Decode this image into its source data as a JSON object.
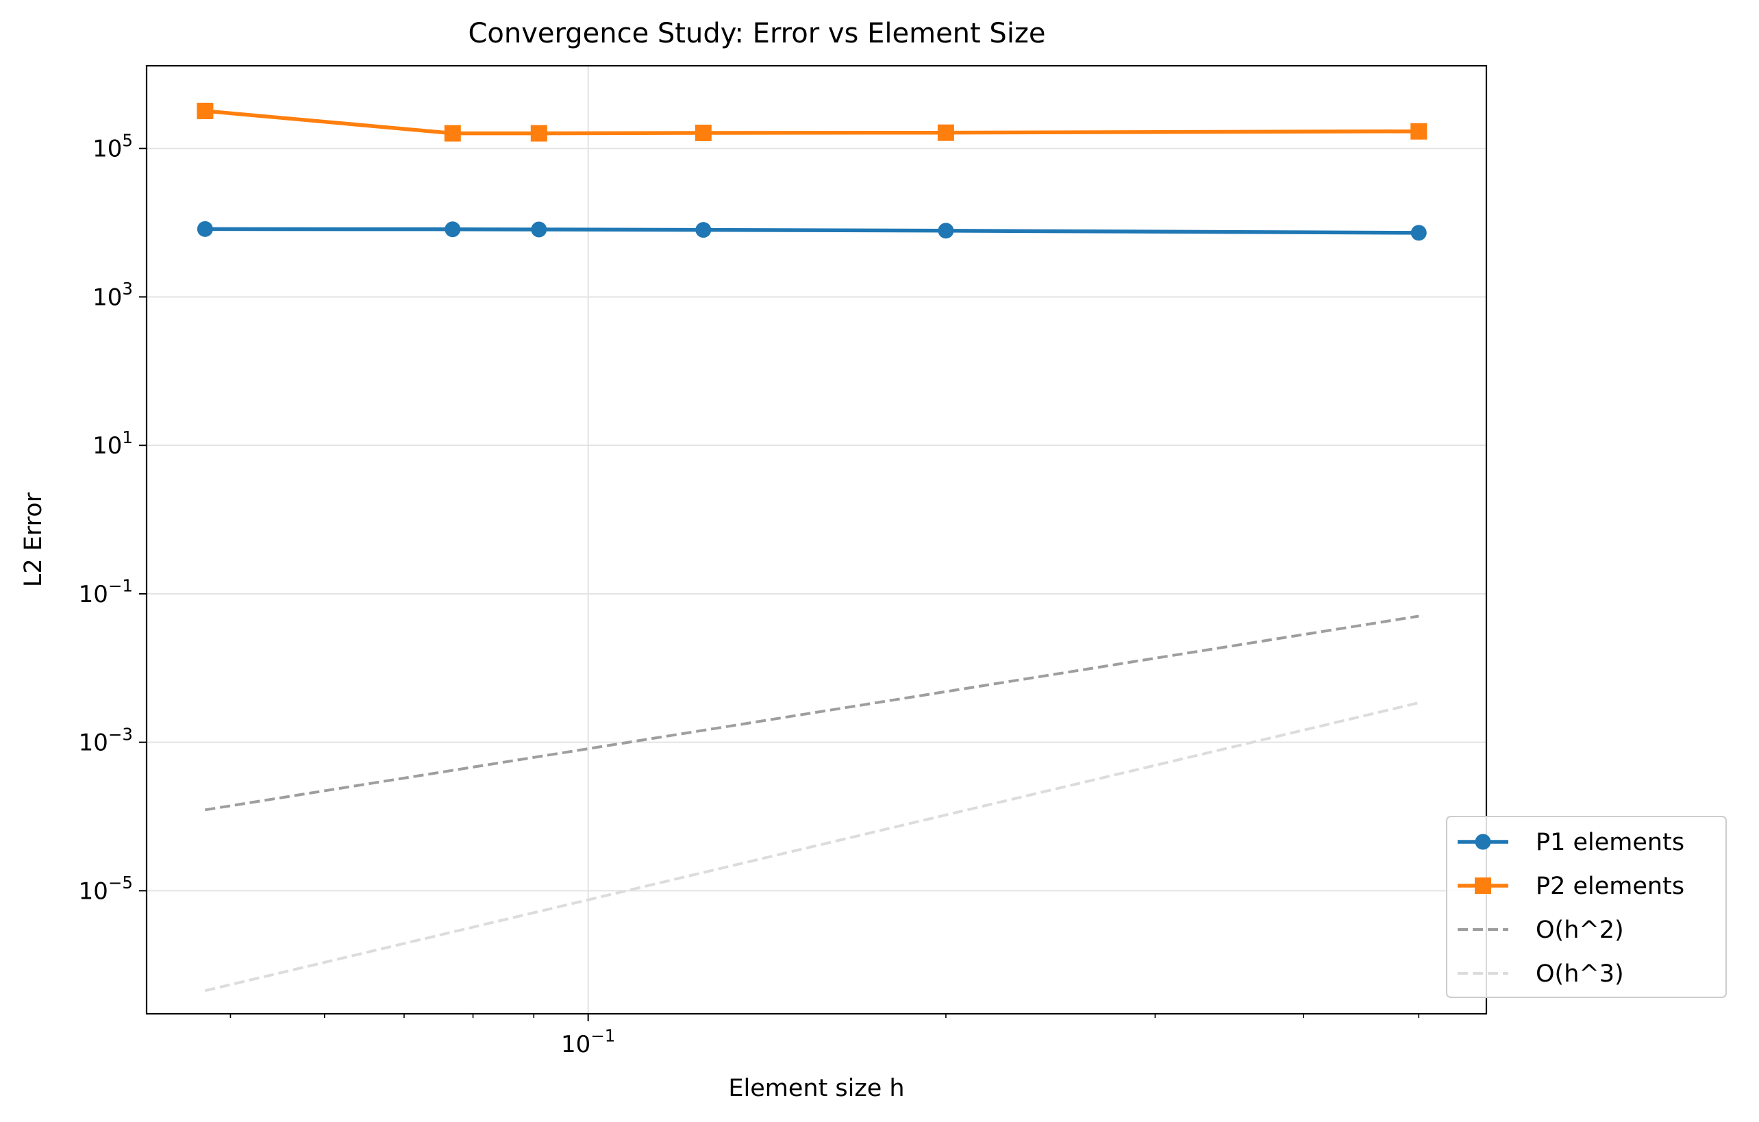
{
  "chart_data": {
    "type": "line",
    "title": "Convergence Study: Error vs Element Size",
    "xlabel": "Element size h",
    "ylabel": "L2 Error",
    "xscale": "log",
    "yscale": "log",
    "xlim": [
      0.0425,
      0.57
    ],
    "ylim": [
      2.2e-07,
      1300000.0
    ],
    "grid": true,
    "legend_position": "lower-right",
    "xticks": [
      {
        "value": 0.1,
        "base": "10",
        "exp": "−1"
      }
    ],
    "yticks": [
      {
        "value": 100000.0,
        "base": "10",
        "exp": "5"
      },
      {
        "value": 1000.0,
        "base": "10",
        "exp": "3"
      },
      {
        "value": 10.0,
        "base": "10",
        "exp": "1"
      },
      {
        "value": 0.1,
        "base": "10",
        "exp": "−1"
      },
      {
        "value": 0.001,
        "base": "10",
        "exp": "−3"
      },
      {
        "value": 1e-05,
        "base": "10",
        "exp": "−5"
      }
    ],
    "x_minor_ticks": [
      0.05,
      0.06,
      0.07,
      0.08,
      0.09,
      0.2,
      0.3,
      0.4,
      0.5
    ],
    "series": [
      {
        "name": "P1 elements",
        "color": "#1f77b4",
        "marker": "circle",
        "style": "solid",
        "x": [
          0.0476,
          0.0769,
          0.0909,
          0.125,
          0.2,
          0.5
        ],
        "values": [
          8200,
          8150,
          8100,
          8000,
          7800,
          7300
        ]
      },
      {
        "name": "P2 elements",
        "color": "#ff7f0e",
        "marker": "square",
        "style": "solid",
        "x": [
          0.0476,
          0.0769,
          0.0909,
          0.125,
          0.2,
          0.5
        ],
        "values": [
          320000,
          160000,
          160000,
          162000,
          163000,
          170000
        ]
      },
      {
        "name": "O(h^2)",
        "color": "#9e9e9e",
        "marker": "none",
        "style": "dashed",
        "x": [
          0.0476,
          0.5
        ],
        "values": [
          0.000123,
          0.05
        ]
      },
      {
        "name": "O(h^3)",
        "color": "#dcdcdc",
        "marker": "none",
        "style": "dashed",
        "x": [
          0.0476,
          0.5
        ],
        "values": [
          4.5e-07,
          0.0034
        ]
      }
    ]
  }
}
